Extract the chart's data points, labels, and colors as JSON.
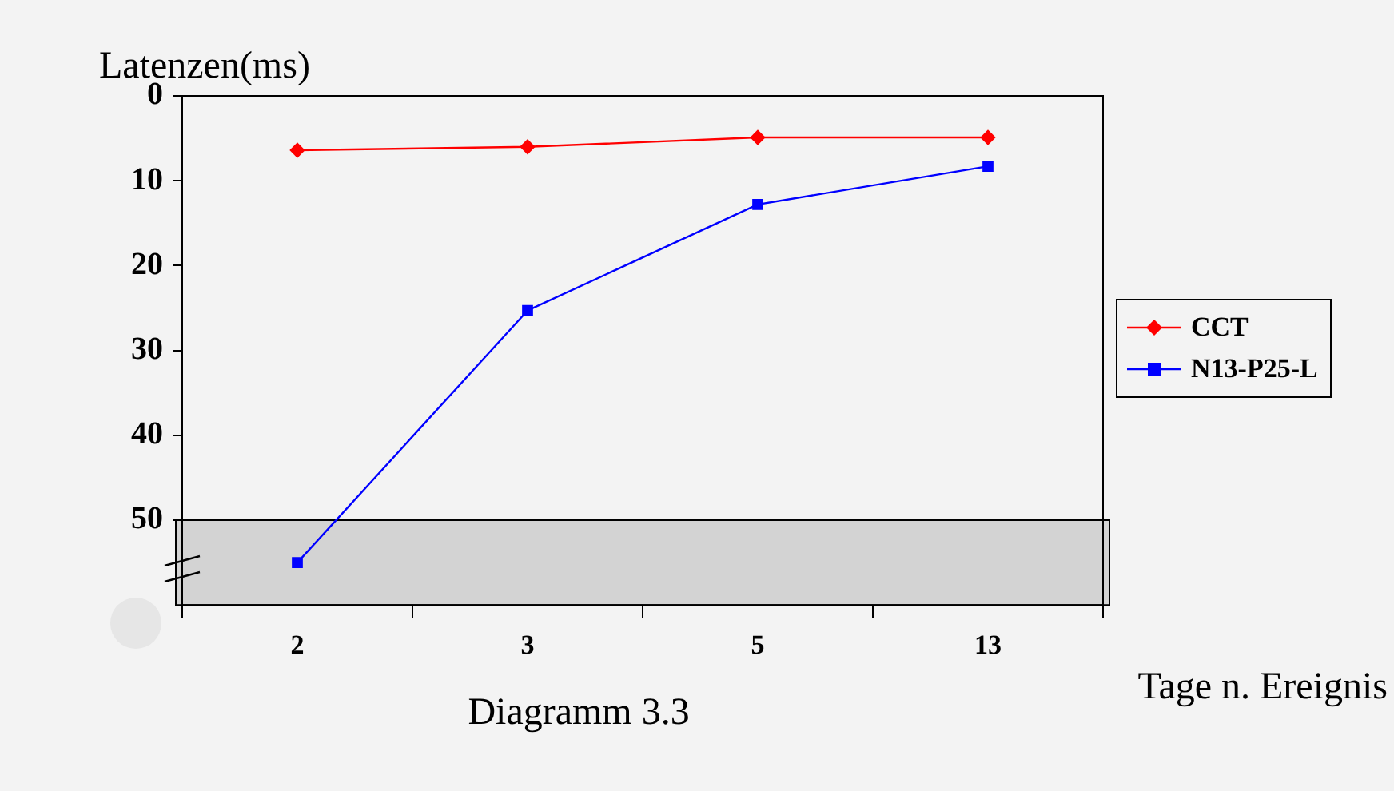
{
  "chart_data": {
    "type": "line",
    "ylabel": "Latenzen(ms)",
    "xlabel": "Tage n. Ereignis",
    "annotations": [
      "Diagramm 3.3"
    ],
    "categories": [
      "2",
      "3",
      "5",
      "13"
    ],
    "series": [
      {
        "name": "CCT",
        "color": "#ff0000",
        "marker": "diamond",
        "values": [
          6.4,
          6.0,
          4.9,
          4.9
        ]
      },
      {
        "name": "N13-P25-L",
        "color": "#0000ff",
        "marker": "square",
        "values": [
          55,
          25.3,
          12.8,
          8.3
        ]
      }
    ],
    "ylim": [
      60,
      0
    ],
    "yticks": [
      0,
      10,
      20,
      30,
      40,
      50
    ],
    "bands": [
      {
        "axis": "y",
        "from": 50,
        "to": 60,
        "color": "#d3d3d3"
      }
    ],
    "grid": false,
    "legend": "right"
  }
}
